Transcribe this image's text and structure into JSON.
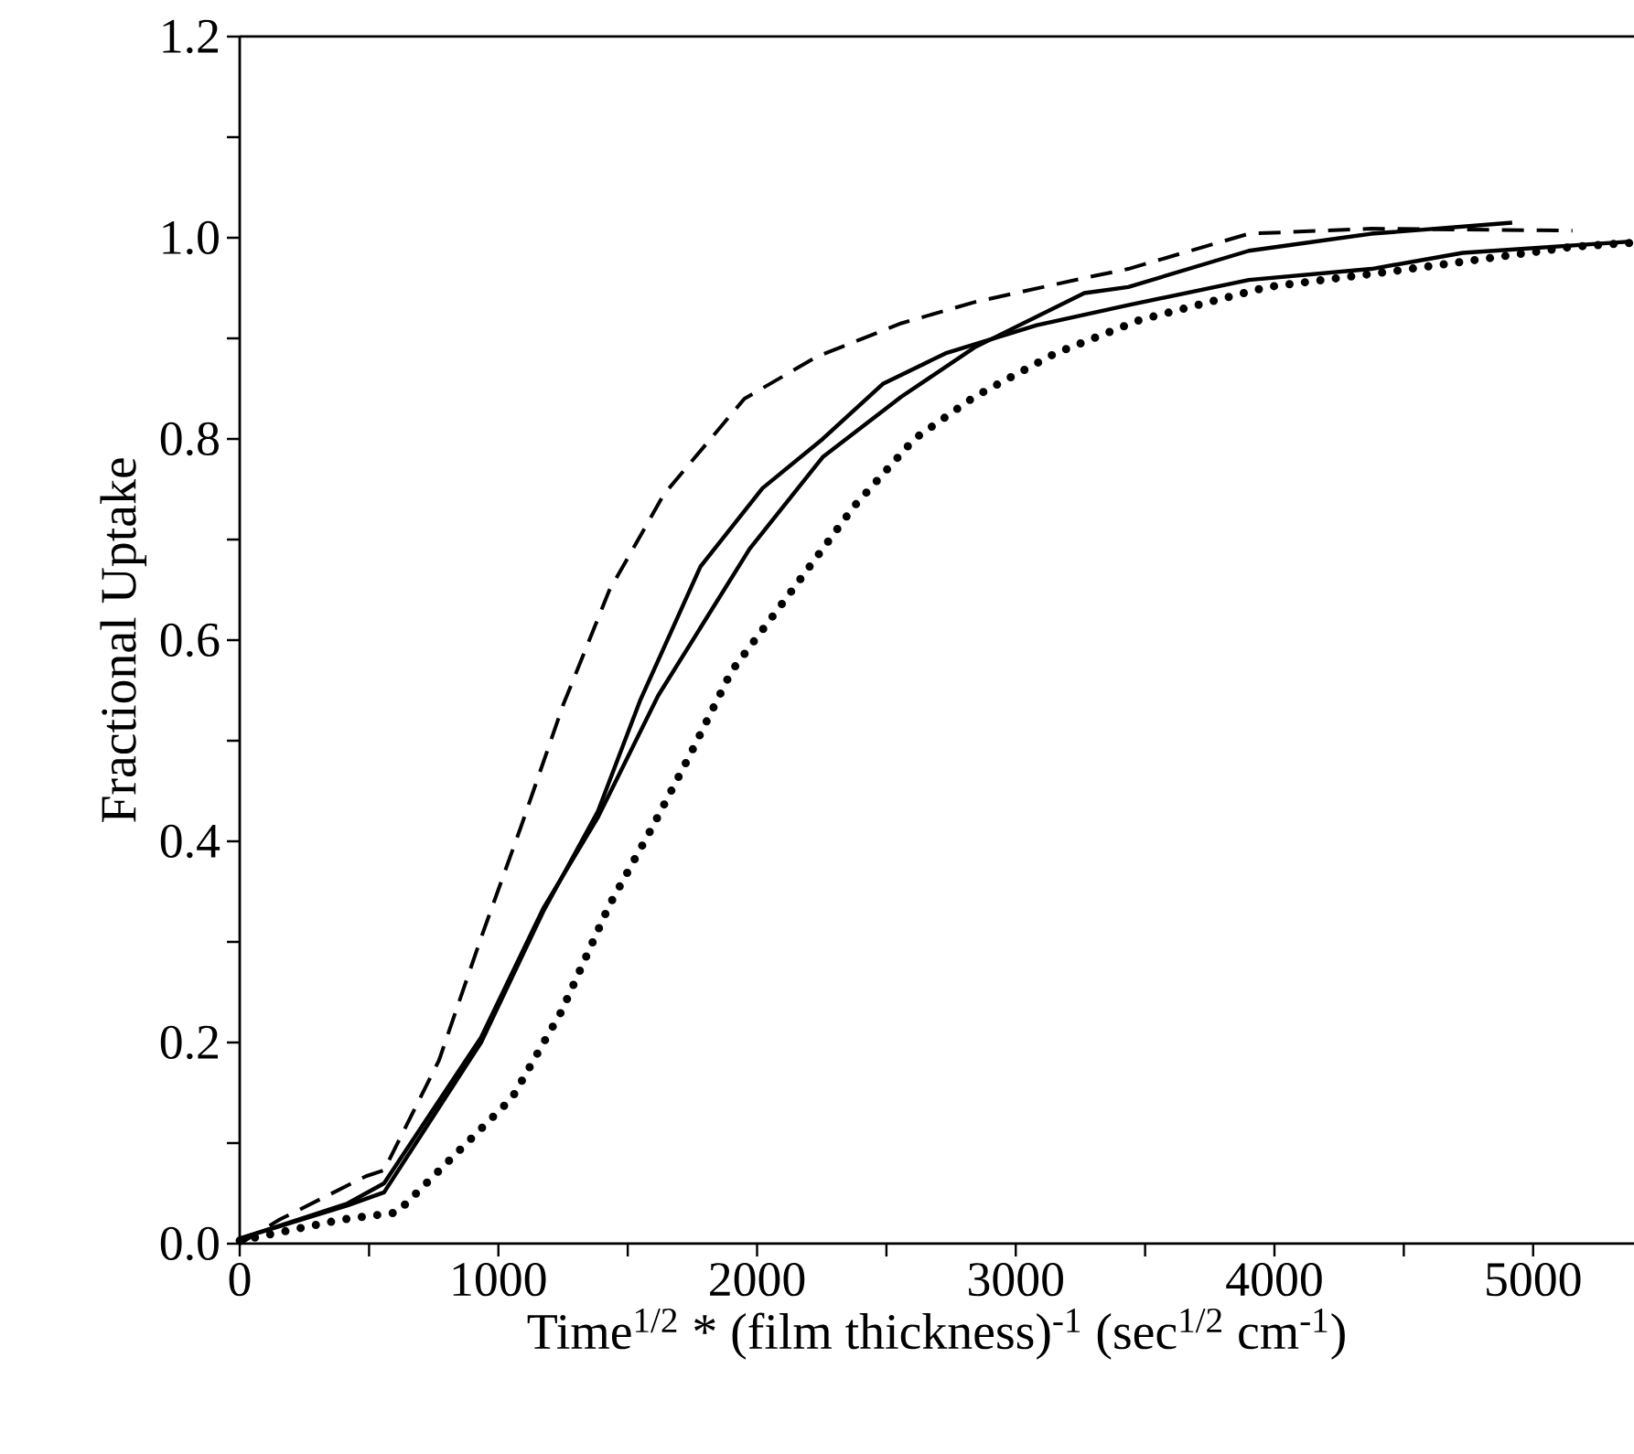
{
  "chart_data": {
    "type": "line",
    "xlabel": "Time$^{1/2}$ * (film thickness)$^{-1}$   (sec$^{1/2}$ cm$^{-1}$)",
    "ylabel": "Fractional Uptake",
    "xlim": [
      0,
      5390
    ],
    "ylim": [
      0,
      1.2
    ],
    "xticks": [
      0,
      {
        "value": 500,
        "label": null
      },
      1000,
      {
        "value": 1500,
        "label": null
      },
      2000,
      {
        "value": 2500,
        "label": null
      },
      3000,
      {
        "value": 3500,
        "label": null
      },
      4000,
      {
        "value": 4500,
        "label": null
      },
      5000
    ],
    "yticks": [
      {
        "value": 0,
        "label": "0.0"
      },
      {
        "value": 0.1,
        "label": null
      },
      {
        "value": 0.2,
        "label": "0.2"
      },
      {
        "value": 0.3,
        "label": null
      },
      {
        "value": 0.4,
        "label": "0.4"
      },
      {
        "value": 0.5,
        "label": null
      },
      {
        "value": 0.6,
        "label": "0.6"
      },
      {
        "value": 0.7,
        "label": null
      },
      {
        "value": 0.8,
        "label": "0.8"
      },
      {
        "value": 0.9,
        "label": null
      },
      {
        "value": 1.0,
        "label": "1.0"
      },
      {
        "value": 1.1,
        "label": null
      },
      {
        "value": 1.2,
        "label": "1.2"
      }
    ],
    "series": [
      {
        "color": "#000000",
        "line_style": "dashed",
        "x": [
          0,
          155,
          488,
          558,
          770,
          933,
          1088,
          1251,
          1428,
          1640,
          1951,
          2233,
          2558,
          2841,
          3265,
          3435,
          3901,
          4375,
          5152
        ],
        "values": [
          0,
          0.024,
          0.067,
          0.073,
          0.182,
          0.304,
          0.415,
          0.536,
          0.649,
          0.745,
          0.84,
          0.882,
          0.915,
          0.936,
          0.96,
          0.969,
          1.004,
          1.009,
          1.007
        ]
      },
      {
        "color": "#000000",
        "line_style": "solid",
        "x": [
          0,
          417,
          558,
          933,
          1173,
          1385,
          1618,
          1972,
          2254,
          2558,
          2841,
          3265,
          3435,
          3901,
          4375,
          4919
        ],
        "values": [
          0.005,
          0.04,
          0.06,
          0.205,
          0.333,
          0.424,
          0.545,
          0.691,
          0.782,
          0.842,
          0.891,
          0.945,
          0.951,
          0.987,
          1.004,
          1.015
        ]
      },
      {
        "color": "#000000",
        "line_style": "solid",
        "x": [
          0,
          417,
          558,
          933,
          1173,
          1385,
          1548,
          1781,
          2021,
          2254,
          2488,
          2728,
          3081,
          3435,
          3901,
          4375,
          4728,
          5364
        ],
        "values": [
          0.005,
          0.038,
          0.051,
          0.2,
          0.33,
          0.43,
          0.54,
          0.673,
          0.751,
          0.8,
          0.855,
          0.885,
          0.913,
          0.933,
          0.958,
          0.969,
          0.985,
          0.996
        ]
      },
      {
        "color": "#000000",
        "line_style": "dotted",
        "x": [
          0,
          396,
          608,
          862,
          1053,
          1244,
          1428,
          1597,
          1739,
          1901,
          2134,
          2375,
          2608,
          2841,
          3152,
          3477,
          3972,
          4466,
          5152,
          5385
        ],
        "values": [
          0.003,
          0.024,
          0.031,
          0.096,
          0.145,
          0.231,
          0.336,
          0.415,
          0.485,
          0.569,
          0.649,
          0.733,
          0.8,
          0.842,
          0.885,
          0.918,
          0.951,
          0.967,
          0.991,
          0.995
        ]
      }
    ]
  }
}
